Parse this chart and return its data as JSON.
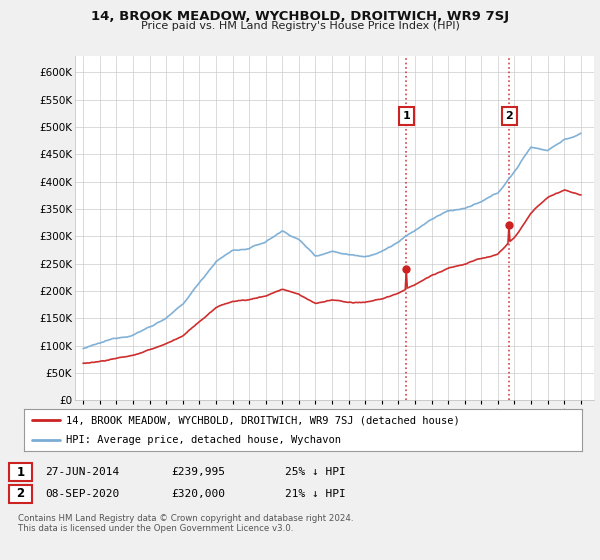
{
  "title": "14, BROOK MEADOW, WYCHBOLD, DROITWICH, WR9 7SJ",
  "subtitle": "Price paid vs. HM Land Registry's House Price Index (HPI)",
  "ylim": [
    0,
    620000
  ],
  "hpi_color": "#7aadd4",
  "price_color": "#cc2222",
  "vline_color": "#cc2222",
  "sale1_year": 2014.49,
  "sale2_year": 2020.69,
  "sale1_price_val": 239995,
  "sale2_price_val": 320000,
  "sale1_date": "27-JUN-2014",
  "sale1_price": "£239,995",
  "sale1_hpi": "25% ↓ HPI",
  "sale2_date": "08-SEP-2020",
  "sale2_price": "£320,000",
  "sale2_hpi": "21% ↓ HPI",
  "legend_red": "14, BROOK MEADOW, WYCHBOLD, DROITWICH, WR9 7SJ (detached house)",
  "legend_blue": "HPI: Average price, detached house, Wychavon",
  "footnote": "Contains HM Land Registry data © Crown copyright and database right 2024.\nThis data is licensed under the Open Government Licence v3.0.",
  "background_color": "#f0f0f0",
  "plot_bg_color": "#ffffff",
  "grid_color": "#cccccc"
}
